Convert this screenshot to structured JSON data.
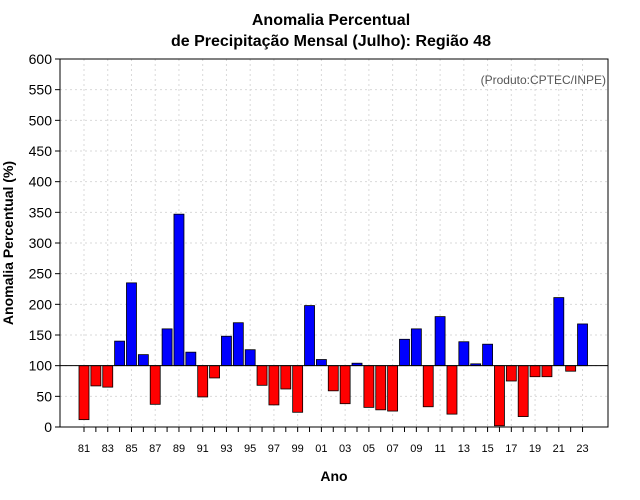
{
  "chart_data": {
    "type": "bar",
    "title": [
      "Anomalia Percentual",
      "de Precipitação Mensal (Julho): Região 48"
    ],
    "xlabel": "Ano",
    "ylabel": "Anomalia Percentual (%)",
    "credit": "(Produto:CPTEC/INPE)",
    "ylim": [
      0,
      600
    ],
    "yticks": [
      0,
      50,
      100,
      150,
      200,
      250,
      300,
      350,
      400,
      450,
      500,
      550,
      600
    ],
    "baseline": 100,
    "grid": true,
    "categories": [
      "81",
      "82",
      "83",
      "84",
      "85",
      "86",
      "87",
      "88",
      "89",
      "90",
      "91",
      "92",
      "93",
      "94",
      "95",
      "96",
      "97",
      "98",
      "99",
      "00",
      "01",
      "02",
      "03",
      "04",
      "05",
      "06",
      "07",
      "08",
      "09",
      "10",
      "11",
      "12",
      "13",
      "14",
      "15",
      "16",
      "17",
      "18",
      "19",
      "20",
      "21",
      "22",
      "23"
    ],
    "xtick_labels": [
      "81",
      "83",
      "85",
      "87",
      "89",
      "91",
      "93",
      "95",
      "97",
      "99",
      "01",
      "03",
      "05",
      "07",
      "09",
      "11",
      "13",
      "15",
      "17",
      "19",
      "21",
      "23"
    ],
    "values": [
      12,
      67,
      65,
      140,
      235,
      118,
      37,
      160,
      347,
      122,
      49,
      80,
      148,
      170,
      126,
      68,
      36,
      62,
      24,
      198,
      110,
      59,
      38,
      104,
      32,
      28,
      26,
      143,
      160,
      33,
      180,
      21,
      139,
      103,
      135,
      2,
      75,
      17,
      82,
      82,
      211,
      91,
      168
    ],
    "colors": {
      "above": "#0000ff",
      "below": "#ff0000",
      "axis": "#000000",
      "grid": "#d9d9d9"
    }
  }
}
